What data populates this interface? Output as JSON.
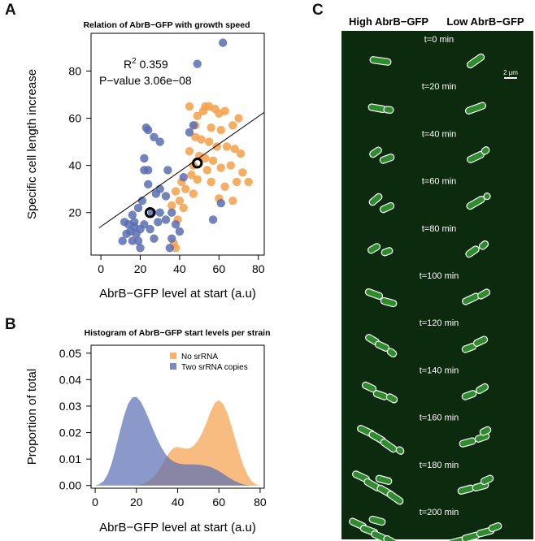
{
  "panels": {
    "a": "A",
    "b": "B",
    "c": "C"
  },
  "colors": {
    "orange": "#F5A04A",
    "blue": "#5A6DB3",
    "fit": "#000000",
    "micro_bg": "#0C2A0E",
    "cell": "#2E8B2E"
  },
  "chart_data": [
    {
      "type": "scatter",
      "title": "Relation of AbrB−GFP with growth speed",
      "xlabel": "AbrB−GFP level at start (a.u)",
      "ylabel": "Specific cell length increase",
      "xlim": [
        -5,
        83
      ],
      "ylim": [
        2,
        96
      ],
      "xticks": [
        0,
        20,
        40,
        60,
        80
      ],
      "yticks": [
        20,
        40,
        60,
        80
      ],
      "grid": false,
      "annotations": {
        "r2_label": "R",
        "r2_sup": "2",
        "r2_value": "0.359",
        "p_label": "P−value",
        "p_value": "3.06e−08"
      },
      "fit_line": {
        "x": [
          -1,
          83
        ],
        "y": [
          13.5,
          62.5
        ]
      },
      "series": [
        {
          "color": "orange",
          "points": [
            [
              45,
              65
            ],
            [
              48,
              57
            ],
            [
              49,
              61
            ],
            [
              52,
              63
            ],
            [
              53,
              65
            ],
            [
              55,
              65
            ],
            [
              58,
              64
            ],
            [
              60,
              62
            ],
            [
              63,
              63
            ],
            [
              67,
              57
            ],
            [
              70,
              60
            ],
            [
              56,
              56
            ],
            [
              61,
              55
            ],
            [
              48,
              52
            ],
            [
              51,
              51
            ],
            [
              55,
              50
            ],
            [
              59,
              48
            ],
            [
              64,
              48
            ],
            [
              68,
              47
            ],
            [
              71,
              45
            ],
            [
              45,
              46
            ],
            [
              50,
              44
            ],
            [
              53,
              43
            ],
            [
              57,
              42
            ],
            [
              47,
              40
            ],
            [
              54,
              38
            ],
            [
              61,
              39
            ],
            [
              66,
              40
            ],
            [
              72,
              37
            ],
            [
              46,
              36
            ],
            [
              49,
              34
            ],
            [
              56,
              33
            ],
            [
              63,
              31
            ],
            [
              69,
              33
            ],
            [
              75,
              33
            ],
            [
              41,
              33
            ],
            [
              43,
              30
            ],
            [
              38,
              29
            ],
            [
              47,
              28
            ],
            [
              40,
              25
            ],
            [
              36,
              23
            ],
            [
              42,
              22
            ],
            [
              39,
              17
            ],
            [
              60,
              26
            ],
            [
              67,
              25
            ],
            [
              37,
              7
            ],
            [
              38,
              5
            ]
          ]
        },
        {
          "color": "blue",
          "points": [
            [
              62,
              92
            ],
            [
              49,
              83
            ],
            [
              45,
              54
            ],
            [
              47,
              57
            ],
            [
              23,
              56
            ],
            [
              24,
              55
            ],
            [
              27,
              52
            ],
            [
              30,
              50
            ],
            [
              22,
              43
            ],
            [
              22,
              38
            ],
            [
              24,
              38
            ],
            [
              42,
              35
            ],
            [
              34,
              38
            ],
            [
              24,
              32
            ],
            [
              30,
              30
            ],
            [
              28,
              28
            ],
            [
              33,
              27
            ],
            [
              21,
              25
            ],
            [
              19,
              22
            ],
            [
              16,
              19
            ],
            [
              26,
              20
            ],
            [
              30,
              20
            ],
            [
              36,
              20
            ],
            [
              29,
              16
            ],
            [
              33,
              17
            ],
            [
              38,
              15
            ],
            [
              40,
              12
            ],
            [
              22,
              15
            ],
            [
              25,
              13
            ],
            [
              17,
              14
            ],
            [
              15,
              12
            ],
            [
              18,
              11
            ],
            [
              20,
              13
            ],
            [
              12,
              16
            ],
            [
              14,
              15
            ],
            [
              17,
              16
            ],
            [
              13,
              11
            ],
            [
              19,
              8
            ],
            [
              16,
              8
            ],
            [
              11,
              8
            ],
            [
              20,
              5
            ],
            [
              27,
              9
            ],
            [
              36,
              9
            ],
            [
              35,
              5
            ],
            [
              61,
              24
            ],
            [
              57,
              17
            ]
          ]
        }
      ],
      "highlighted": [
        [
          25,
          20
        ],
        [
          49,
          41
        ]
      ]
    },
    {
      "type": "area",
      "title": "Histogram of AbrB−GFP start levels per strain",
      "xlabel": "AbrB−GFP level at start (a.u)",
      "ylabel": "Proportion of total",
      "xlim": [
        -2,
        82
      ],
      "ylim": [
        -0.001,
        0.053
      ],
      "xticks": [
        0,
        20,
        40,
        60,
        80
      ],
      "yticks": [
        "0.00",
        "0.01",
        "0.02",
        "0.03",
        "0.04",
        "0.05"
      ],
      "legend": "top-right",
      "series": [
        {
          "name": "No srRNA",
          "color": "orange",
          "x": [
            18,
            20,
            22,
            24,
            26,
            28,
            30,
            32,
            34,
            36,
            38,
            40,
            42,
            44,
            46,
            48,
            50,
            52,
            54,
            56,
            58,
            60,
            62,
            64,
            66,
            68,
            70,
            72,
            74,
            76,
            78,
            80
          ],
          "values": [
            0,
            0.0001,
            0.0004,
            0.0009,
            0.0018,
            0.003,
            0.0048,
            0.0072,
            0.01,
            0.0125,
            0.0142,
            0.0146,
            0.0142,
            0.0139,
            0.0141,
            0.0152,
            0.0172,
            0.02,
            0.0238,
            0.028,
            0.0312,
            0.0322,
            0.0309,
            0.0276,
            0.0228,
            0.0173,
            0.012,
            0.0074,
            0.0039,
            0.0016,
            0.0005,
            0
          ]
        },
        {
          "name": "Two srRNA copies",
          "color": "blue",
          "x": [
            0,
            2,
            4,
            6,
            8,
            10,
            12,
            14,
            16,
            18,
            20,
            22,
            24,
            26,
            28,
            30,
            32,
            34,
            36,
            38,
            40,
            42,
            44,
            46,
            48,
            50,
            52,
            54,
            56,
            58,
            60,
            62,
            64,
            66,
            68,
            70,
            72,
            74,
            76
          ],
          "values": [
            0,
            0.0005,
            0.0016,
            0.0041,
            0.0084,
            0.0142,
            0.0205,
            0.0264,
            0.0309,
            0.0333,
            0.0335,
            0.0318,
            0.0288,
            0.0252,
            0.0214,
            0.0178,
            0.0146,
            0.012,
            0.0102,
            0.0091,
            0.0084,
            0.0081,
            0.008,
            0.008,
            0.008,
            0.0079,
            0.0077,
            0.0074,
            0.007,
            0.0063,
            0.0055,
            0.0045,
            0.0035,
            0.0025,
            0.0016,
            0.0009,
            0.0004,
            0.0001,
            0
          ]
        }
      ]
    }
  ],
  "micrograph": {
    "col_left": "High AbrB−GFP",
    "col_right": "Low AbrB−GFP",
    "scale": "2 μm",
    "times": [
      "t=0 min",
      "t=20 min",
      "t=40 min",
      "t=60 min",
      "t=80 min",
      "t=100 min",
      "t=120 min",
      "t=140 min",
      "t=160 min",
      "t=180 min",
      "t=200 min"
    ]
  }
}
